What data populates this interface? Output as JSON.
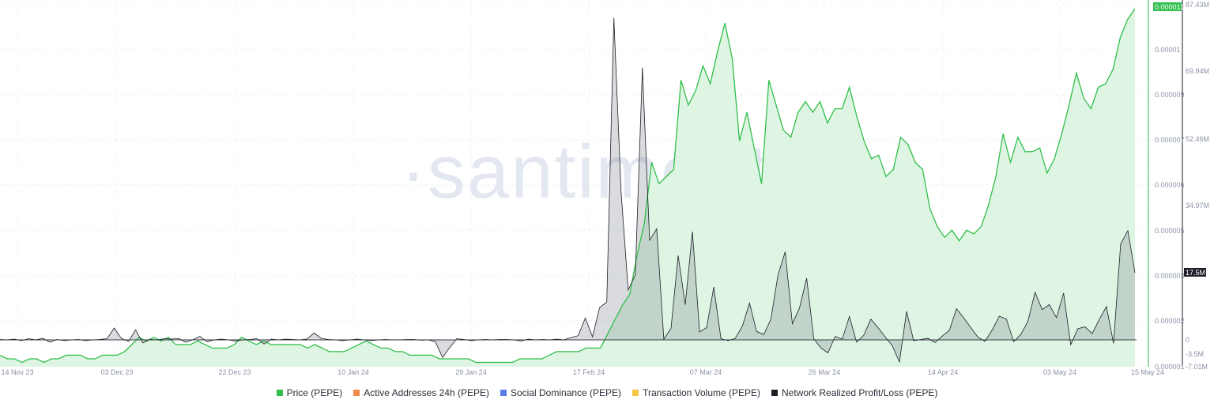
{
  "watermark": "·santiment·",
  "chart_data": {
    "type": "area",
    "x_labels": [
      "14 Nov 23",
      "03 Dec 23",
      "22 Dec 23",
      "10 Jan 24",
      "29 Jan 24",
      "17 Feb 24",
      "07 Mar 24",
      "26 Mar 24",
      "14 Apr 24",
      "03 May 24",
      "15 May 24"
    ],
    "right_axis_price": {
      "ticks": [
        "0.000011",
        "0.00001",
        "0.000009",
        "0.000007",
        "0.000006",
        "0.000005",
        "0.000003",
        "0.000002",
        "0.000001"
      ],
      "current": "0.000011"
    },
    "right_axis_pnl": {
      "ticks": [
        "87.43M",
        "69.94M",
        "52.46M",
        "34.97M",
        "0",
        "-3.5M",
        "-7.01M"
      ],
      "current": "17.5M"
    },
    "series": [
      {
        "name": "Price (PEPE)",
        "color": "#2fbf4a",
        "values": [
          1.3e-06,
          1.2e-06,
          1.2e-06,
          1.1e-06,
          1.2e-06,
          1.2e-06,
          1.1e-06,
          1.2e-06,
          1.2e-06,
          1.3e-06,
          1.3e-06,
          1.3e-06,
          1.2e-06,
          1.2e-06,
          1.3e-06,
          1.3e-06,
          1.3e-06,
          1.4e-06,
          1.6e-06,
          1.8e-06,
          1.7e-06,
          1.8e-06,
          1.7e-06,
          1.8e-06,
          1.6e-06,
          1.6e-06,
          1.6e-06,
          1.7e-06,
          1.6e-06,
          1.5e-06,
          1.5e-06,
          1.5e-06,
          1.6e-06,
          1.8e-06,
          1.7e-06,
          1.6e-06,
          1.7e-06,
          1.6e-06,
          1.6e-06,
          1.6e-06,
          1.6e-06,
          1.6e-06,
          1.5e-06,
          1.6e-06,
          1.5e-06,
          1.4e-06,
          1.4e-06,
          1.4e-06,
          1.5e-06,
          1.6e-06,
          1.7e-06,
          1.6e-06,
          1.5e-06,
          1.5e-06,
          1.4e-06,
          1.4e-06,
          1.3e-06,
          1.3e-06,
          1.3e-06,
          1.3e-06,
          1.2e-06,
          1.2e-06,
          1.2e-06,
          1.2e-06,
          1.2e-06,
          1.1e-06,
          1.1e-06,
          1.1e-06,
          1.1e-06,
          1.1e-06,
          1.1e-06,
          1.2e-06,
          1.2e-06,
          1.2e-06,
          1.2e-06,
          1.3e-06,
          1.4e-06,
          1.4e-06,
          1.4e-06,
          1.4e-06,
          1.5e-06,
          1.5e-06,
          1.5e-06,
          1.9e-06,
          2.3e-06,
          2.7e-06,
          3e-06,
          4.1e-06,
          5e-06,
          6.7e-06,
          6.1e-06,
          6.3e-06,
          6.5e-06,
          9e-06,
          8.3e-06,
          8.7e-06,
          9.4e-06,
          8.9e-06,
          9.8e-06,
          1.06e-05,
          9.6e-06,
          7.3e-06,
          8.1e-06,
          7.1e-06,
          6.1e-06,
          9e-06,
          8.3e-06,
          7.6e-06,
          7.4e-06,
          8.1e-06,
          8.4e-06,
          8.1e-06,
          8.4e-06,
          7.8e-06,
          8.2e-06,
          8.2e-06,
          8.8e-06,
          8e-06,
          7.3e-06,
          6.8e-06,
          6.9e-06,
          6.3e-06,
          6.5e-06,
          7.4e-06,
          7.2e-06,
          6.7e-06,
          6.5e-06,
          5.4e-06,
          4.9e-06,
          4.6e-06,
          4.8e-06,
          4.5e-06,
          4.8e-06,
          4.7e-06,
          4.9e-06,
          5.5e-06,
          6.3e-06,
          7.5e-06,
          6.7e-06,
          7.4e-06,
          7e-06,
          7e-06,
          7.1e-06,
          6.4e-06,
          6.8e-06,
          7.5e-06,
          8.3e-06,
          9.2e-06,
          8.5e-06,
          8.2e-06,
          8.8e-06,
          8.9e-06,
          9.3e-06,
          1.02e-05,
          1.07e-05,
          1.1e-05
        ]
      },
      {
        "name": "Active Addresses 24h (PEPE)",
        "color": "#f08a4b",
        "values": []
      },
      {
        "name": "Social Dominance (PEPE)",
        "color": "#5b7be8",
        "values": []
      },
      {
        "name": "Transaction Volume (PEPE)",
        "color": "#f6c443",
        "values": []
      },
      {
        "name": "Network Realized Profit/Loss (PEPE)",
        "color": "#1c1f26",
        "values": [
          0.1,
          0.0,
          0.2,
          -0.2,
          0.3,
          0.0,
          0.4,
          -0.6,
          0.1,
          -0.2,
          0.0,
          0.1,
          -0.2,
          0.0,
          0.1,
          0.3,
          3.1,
          0.4,
          -0.4,
          2.6,
          -0.8,
          0.1,
          0.0,
          0.3,
          0.2,
          0.4,
          -0.6,
          0.0,
          0.9,
          -0.5,
          0.0,
          0.2,
          0.0,
          -0.3,
          0.0,
          0.1,
          0.3,
          -1.1,
          0.2,
          0.0,
          0.2,
          0.1,
          0.0,
          0.2,
          1.8,
          0.4,
          0.1,
          0.0,
          -0.2,
          0.0,
          0.2,
          0.0,
          -0.2,
          0.0,
          0.1,
          0.0,
          0.0,
          0.1,
          0.1,
          -0.1,
          0.0,
          -0.5,
          -4.6,
          -2.0,
          0.3,
          0.1,
          -0.2,
          0.0,
          0.1,
          0.0,
          0.1,
          0.1,
          0.0,
          -0.3,
          0.2,
          0.0,
          0.1,
          0.0,
          0.2,
          0.0,
          0.6,
          1.1,
          5.7,
          0.8,
          8.4,
          9.9,
          84.0,
          39.0,
          13.0,
          17.0,
          71.0,
          26.0,
          29.0,
          0.2,
          3.0,
          22.0,
          9.2,
          28.2,
          2.1,
          3.2,
          13.8,
          0.3,
          -0.2,
          0.4,
          3.6,
          9.6,
          2.2,
          1.4,
          5.4,
          17.0,
          23.0,
          4.2,
          8.3,
          16.1,
          0.3,
          -2.1,
          -3.4,
          0.9,
          0.2,
          6.1,
          -0.6,
          1.2,
          5.4,
          3.2,
          0.8,
          -1.5,
          -5.8,
          7.4,
          -0.2,
          0.1,
          0.4,
          -0.7,
          1.0,
          2.5,
          8.1,
          5.8,
          3.2,
          0.7,
          -0.4,
          2.6,
          6.2,
          5.4,
          -0.5,
          1.4,
          4.8,
          12.4,
          7.9,
          9.2,
          5.8,
          12.2,
          -1.3,
          2.9,
          3.4,
          1.6,
          5.3,
          8.7,
          -0.9,
          25.0,
          28.5,
          17.5
        ]
      }
    ],
    "grid": true,
    "legend_position": "bottom"
  }
}
